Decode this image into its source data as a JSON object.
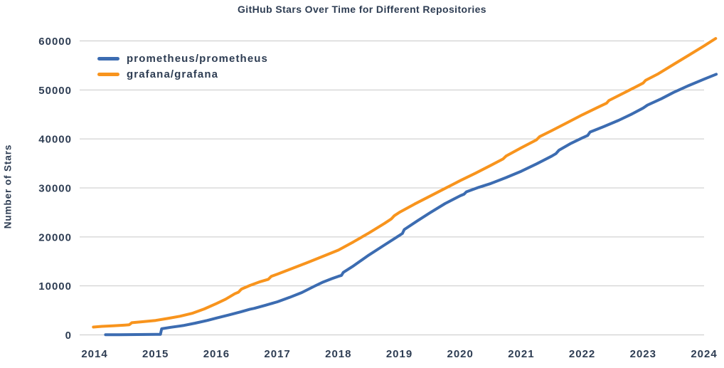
{
  "chart_data": {
    "type": "line",
    "title": "GitHub Stars Over Time for Different Repositories",
    "xlabel": "",
    "ylabel": "Number of Stars",
    "x_ticks": [
      2014,
      2015,
      2016,
      2017,
      2018,
      2019,
      2020,
      2021,
      2022,
      2023,
      2024
    ],
    "y_ticks": [
      0,
      10000,
      20000,
      30000,
      40000,
      50000,
      60000
    ],
    "ylim": [
      0,
      60000
    ],
    "xlim": [
      2013.75,
      2024.35
    ],
    "grid": "horizontal-only",
    "legend_position": "upper-left",
    "background": "#ffffff",
    "colors": {
      "text": "#2e3d53",
      "grid": "#c8c8c8",
      "prometheus": "#3c6cb1",
      "grafana": "#f8941d"
    },
    "series": [
      {
        "name": "prometheus/prometheus",
        "color_key": "prometheus",
        "points": [
          [
            2014.18,
            30
          ],
          [
            2014.4,
            50
          ],
          [
            2014.7,
            70
          ],
          [
            2015.0,
            95
          ],
          [
            2015.08,
            120
          ],
          [
            2015.1,
            1250
          ],
          [
            2015.25,
            1550
          ],
          [
            2015.45,
            1900
          ],
          [
            2015.65,
            2400
          ],
          [
            2015.85,
            2950
          ],
          [
            2016.0,
            3450
          ],
          [
            2016.2,
            4050
          ],
          [
            2016.4,
            4700
          ],
          [
            2016.55,
            5250
          ],
          [
            2016.62,
            5420
          ],
          [
            2016.8,
            6050
          ],
          [
            2017.0,
            6750
          ],
          [
            2017.2,
            7650
          ],
          [
            2017.4,
            8650
          ],
          [
            2017.6,
            9900
          ],
          [
            2017.75,
            10800
          ],
          [
            2017.9,
            11500
          ],
          [
            2018.0,
            11950
          ],
          [
            2018.05,
            12150
          ],
          [
            2018.08,
            12750
          ],
          [
            2018.25,
            14100
          ],
          [
            2018.5,
            16300
          ],
          [
            2018.75,
            18300
          ],
          [
            2019.0,
            20300
          ],
          [
            2019.05,
            20700
          ],
          [
            2019.08,
            21500
          ],
          [
            2019.3,
            23300
          ],
          [
            2019.5,
            24900
          ],
          [
            2019.75,
            26800
          ],
          [
            2020.0,
            28400
          ],
          [
            2020.06,
            28700
          ],
          [
            2020.1,
            29200
          ],
          [
            2020.3,
            30100
          ],
          [
            2020.5,
            30900
          ],
          [
            2020.75,
            32100
          ],
          [
            2021.0,
            33400
          ],
          [
            2021.25,
            34900
          ],
          [
            2021.5,
            36500
          ],
          [
            2021.57,
            37000
          ],
          [
            2021.62,
            37700
          ],
          [
            2021.8,
            39000
          ],
          [
            2022.0,
            40200
          ],
          [
            2022.09,
            40700
          ],
          [
            2022.13,
            41400
          ],
          [
            2022.35,
            42500
          ],
          [
            2022.6,
            43800
          ],
          [
            2022.8,
            45000
          ],
          [
            2023.0,
            46300
          ],
          [
            2023.07,
            46900
          ],
          [
            2023.3,
            48200
          ],
          [
            2023.5,
            49500
          ],
          [
            2023.75,
            50900
          ],
          [
            2024.0,
            52200
          ],
          [
            2024.2,
            53200
          ]
        ]
      },
      {
        "name": "grafana/grafana",
        "color_key": "grafana",
        "points": [
          [
            2013.98,
            1600
          ],
          [
            2014.12,
            1750
          ],
          [
            2014.3,
            1850
          ],
          [
            2014.5,
            2000
          ],
          [
            2014.57,
            2080
          ],
          [
            2014.61,
            2480
          ],
          [
            2014.8,
            2700
          ],
          [
            2015.0,
            2950
          ],
          [
            2015.2,
            3350
          ],
          [
            2015.4,
            3800
          ],
          [
            2015.6,
            4400
          ],
          [
            2015.8,
            5300
          ],
          [
            2016.0,
            6400
          ],
          [
            2016.15,
            7300
          ],
          [
            2016.3,
            8400
          ],
          [
            2016.36,
            8720
          ],
          [
            2016.41,
            9350
          ],
          [
            2016.55,
            10100
          ],
          [
            2016.7,
            10800
          ],
          [
            2016.85,
            11350
          ],
          [
            2016.9,
            11950
          ],
          [
            2017.0,
            12400
          ],
          [
            2017.25,
            13600
          ],
          [
            2017.5,
            14800
          ],
          [
            2017.75,
            16050
          ],
          [
            2018.0,
            17300
          ],
          [
            2018.25,
            19000
          ],
          [
            2018.5,
            20800
          ],
          [
            2018.75,
            22700
          ],
          [
            2018.87,
            23700
          ],
          [
            2018.92,
            24350
          ],
          [
            2019.0,
            25000
          ],
          [
            2019.25,
            26700
          ],
          [
            2019.5,
            28300
          ],
          [
            2019.75,
            29900
          ],
          [
            2020.0,
            31500
          ],
          [
            2020.25,
            33000
          ],
          [
            2020.5,
            34600
          ],
          [
            2020.7,
            35900
          ],
          [
            2020.75,
            36500
          ],
          [
            2021.0,
            38200
          ],
          [
            2021.25,
            39800
          ],
          [
            2021.3,
            40450
          ],
          [
            2021.5,
            41700
          ],
          [
            2021.75,
            43300
          ],
          [
            2022.0,
            44900
          ],
          [
            2022.25,
            46400
          ],
          [
            2022.4,
            47300
          ],
          [
            2022.44,
            47850
          ],
          [
            2022.75,
            49800
          ],
          [
            2023.0,
            51400
          ],
          [
            2023.04,
            51950
          ],
          [
            2023.25,
            53300
          ],
          [
            2023.5,
            55200
          ],
          [
            2023.75,
            57100
          ],
          [
            2024.0,
            59000
          ],
          [
            2024.1,
            59800
          ],
          [
            2024.19,
            60500
          ]
        ]
      }
    ]
  }
}
